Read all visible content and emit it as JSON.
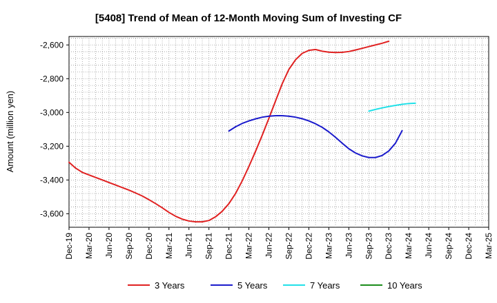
{
  "chart_data": {
    "type": "line",
    "title": "[5408]  Trend of Mean of 12-Month Moving Sum of Investing CF",
    "ylabel": "Amount (million yen)",
    "xlabel": "",
    "ylim": [
      -3680,
      -2550
    ],
    "yticks": [
      -2600,
      -2800,
      -3000,
      -3200,
      -3400,
      -3600
    ],
    "ytick_labels": [
      "-2,600",
      "-2,800",
      "-3,000",
      "-3,200",
      "-3,400",
      "-3,600"
    ],
    "xtick_labels": [
      "Dec-19",
      "Mar-20",
      "Jun-20",
      "Sep-20",
      "Dec-20",
      "Mar-21",
      "Jun-21",
      "Sep-21",
      "Dec-21",
      "Mar-22",
      "Jun-22",
      "Sep-22",
      "Dec-22",
      "Mar-23",
      "Jun-23",
      "Sep-23",
      "Dec-23",
      "Mar-24",
      "Jun-24",
      "Sep-24",
      "Dec-24",
      "Mar-25"
    ],
    "grid": true,
    "legend_position": "bottom",
    "series": [
      {
        "name": "3 Years",
        "color": "#e02020",
        "points": [
          [
            0,
            -3295
          ],
          [
            1,
            -3330
          ],
          [
            2,
            -3355
          ],
          [
            3,
            -3370
          ],
          [
            4,
            -3385
          ],
          [
            5,
            -3400
          ],
          [
            6,
            -3415
          ],
          [
            7,
            -3430
          ],
          [
            8,
            -3445
          ],
          [
            9,
            -3460
          ],
          [
            10,
            -3477
          ],
          [
            11,
            -3495
          ],
          [
            12,
            -3517
          ],
          [
            13,
            -3540
          ],
          [
            14,
            -3565
          ],
          [
            15,
            -3592
          ],
          [
            16,
            -3615
          ],
          [
            17,
            -3632
          ],
          [
            18,
            -3643
          ],
          [
            19,
            -3648
          ],
          [
            20,
            -3648
          ],
          [
            21,
            -3640
          ],
          [
            22,
            -3618
          ],
          [
            23,
            -3585
          ],
          [
            24,
            -3540
          ],
          [
            25,
            -3480
          ],
          [
            26,
            -3405
          ],
          [
            27,
            -3320
          ],
          [
            28,
            -3230
          ],
          [
            29,
            -3135
          ],
          [
            30,
            -3035
          ],
          [
            31,
            -2932
          ],
          [
            32,
            -2830
          ],
          [
            33,
            -2745
          ],
          [
            34,
            -2688
          ],
          [
            35,
            -2650
          ],
          [
            36,
            -2632
          ],
          [
            37,
            -2627
          ],
          [
            38,
            -2637
          ],
          [
            39,
            -2643
          ],
          [
            40,
            -2645
          ],
          [
            41,
            -2644
          ],
          [
            42,
            -2639
          ],
          [
            43,
            -2630
          ],
          [
            44,
            -2620
          ],
          [
            45,
            -2610
          ],
          [
            46,
            -2600
          ],
          [
            47,
            -2590
          ],
          [
            48,
            -2578
          ]
        ]
      },
      {
        "name": "5 Years",
        "color": "#1a1acc",
        "points": [
          [
            24,
            -3110
          ],
          [
            25,
            -3085
          ],
          [
            26,
            -3065
          ],
          [
            27,
            -3050
          ],
          [
            28,
            -3038
          ],
          [
            29,
            -3028
          ],
          [
            30,
            -3022
          ],
          [
            31,
            -3019
          ],
          [
            32,
            -3019
          ],
          [
            33,
            -3022
          ],
          [
            34,
            -3028
          ],
          [
            35,
            -3037
          ],
          [
            36,
            -3050
          ],
          [
            37,
            -3067
          ],
          [
            38,
            -3088
          ],
          [
            39,
            -3115
          ],
          [
            40,
            -3147
          ],
          [
            41,
            -3182
          ],
          [
            42,
            -3215
          ],
          [
            43,
            -3240
          ],
          [
            44,
            -3257
          ],
          [
            45,
            -3267
          ],
          [
            46,
            -3267
          ],
          [
            47,
            -3255
          ],
          [
            48,
            -3228
          ],
          [
            49,
            -3182
          ],
          [
            50,
            -3108
          ]
        ]
      },
      {
        "name": "7 Years",
        "color": "#20e0e8",
        "points": [
          [
            45,
            -2992
          ],
          [
            46,
            -2982
          ],
          [
            47,
            -2973
          ],
          [
            48,
            -2965
          ],
          [
            49,
            -2958
          ],
          [
            50,
            -2952
          ],
          [
            51,
            -2947
          ],
          [
            52,
            -2945
          ]
        ]
      },
      {
        "name": "10 Years",
        "color": "#1a8c1a",
        "points": []
      }
    ]
  }
}
